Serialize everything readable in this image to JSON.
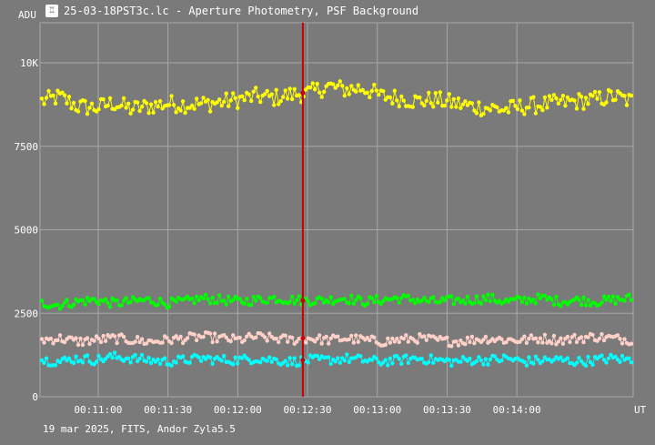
{
  "window": {
    "title": "25-03-18PST3c.lc - Aperture Photometry, PSF Background",
    "icon": "app-chart-icon"
  },
  "footer_text": "19 mar 2025, FITS, Andor Zyla5.5",
  "colors": {
    "background": "#7a7a7a",
    "grid": "#a8a8a8",
    "series_yellow": "#ffff00",
    "series_green": "#00ff00",
    "series_pink": "#ffd0c8",
    "series_cyan": "#00ffff",
    "cursor": "#cc0000"
  },
  "chart_data": {
    "type": "scatter",
    "ylabel": "ADU",
    "xlabel": "UT",
    "ylim": [
      0,
      11200
    ],
    "y_ticks": [
      {
        "value": 0,
        "label": "0"
      },
      {
        "value": 2500,
        "label": "2500"
      },
      {
        "value": 5000,
        "label": "5000"
      },
      {
        "value": 7500,
        "label": "7500"
      },
      {
        "value": 10000,
        "label": "10K"
      }
    ],
    "xlim": [
      "00:10:35",
      "00:14:50"
    ],
    "x_ticks": [
      "00:11:00",
      "00:11:30",
      "00:12:00",
      "00:12:30",
      "00:13:00",
      "00:13:30",
      "00:14:00"
    ],
    "grid": true,
    "cursor_time": "00:12:28",
    "series": [
      {
        "color": "#ffff00",
        "values": [
          8850,
          8980,
          8700,
          8650,
          8800,
          8620,
          8700,
          8780,
          8760,
          8770,
          8820,
          8900,
          9000,
          8950,
          9050,
          9100,
          9300,
          9200,
          9250,
          9000,
          8950,
          8850,
          8900,
          8800,
          8700,
          8650,
          8600,
          8700,
          8750,
          8800,
          8850,
          8900,
          9000,
          8850
        ]
      },
      {
        "color": "#00ff00",
        "values": [
          2800,
          2750,
          2850,
          2900,
          2800,
          2850,
          2900,
          2800,
          2850,
          2950,
          2900,
          2850,
          2900,
          2950,
          2900,
          2880,
          2900,
          2950,
          2850,
          2900,
          2950,
          2900,
          2850,
          2880,
          2900,
          2950,
          2850,
          2900,
          2950,
          2850,
          2900,
          2850,
          2900,
          2950
        ]
      },
      {
        "color": "#ffd0c8",
        "values": [
          1700,
          1750,
          1650,
          1700,
          1750,
          1700,
          1650,
          1700,
          1750,
          1800,
          1750,
          1700,
          1800,
          1750,
          1700,
          1750,
          1700,
          1750,
          1700,
          1650,
          1700,
          1750,
          1700,
          1650,
          1700,
          1750,
          1700,
          1700,
          1750,
          1700,
          1750,
          1800,
          1750,
          1700
        ]
      },
      {
        "color": "#00ffff",
        "values": [
          1100,
          1050,
          1150,
          1100,
          1200,
          1150,
          1100,
          1050,
          1100,
          1150,
          1100,
          1100,
          1150,
          1100,
          1050,
          1100,
          1100,
          1150,
          1100,
          1050,
          1100,
          1150,
          1100,
          1050,
          1100,
          1100,
          1150,
          1050,
          1100,
          1100,
          1050,
          1100,
          1150,
          1100
        ]
      }
    ]
  }
}
